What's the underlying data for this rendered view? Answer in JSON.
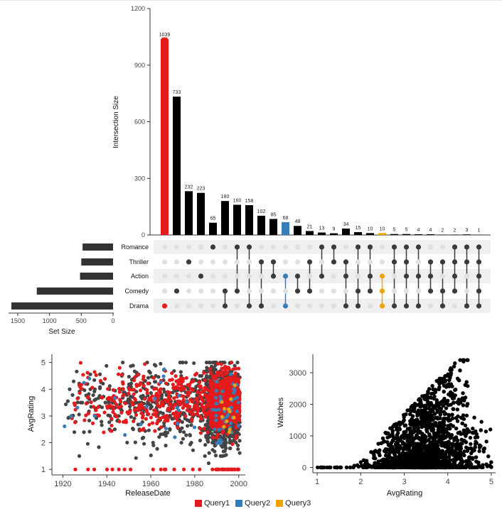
{
  "chart_data": [
    {
      "type": "upset",
      "ylabel": "Intersection Size",
      "ylim": [
        0,
        1200
      ],
      "yticks": [
        0,
        300,
        600,
        900,
        1200
      ],
      "sets": [
        "Romance",
        "Thriller",
        "Action",
        "Comedy",
        "Drama"
      ],
      "set_sizes": [
        480,
        500,
        520,
        1200,
        1600
      ],
      "set_size_label": "Set Size",
      "set_size_ticks": [
        1500,
        1000,
        500,
        0
      ],
      "intersections": [
        {
          "value": 1039,
          "members": [
            "Drama"
          ],
          "color": "#e41a1c",
          "text_color": "#e41a1c",
          "highlight": "Query1"
        },
        {
          "value": 733,
          "members": [
            "Comedy"
          ]
        },
        {
          "value": 232,
          "members": [
            "Thriller"
          ]
        },
        {
          "value": 223,
          "members": [
            "Action"
          ]
        },
        {
          "value": 65,
          "members": [
            "Romance"
          ]
        },
        {
          "value": 180,
          "members": [
            "Comedy",
            "Drama"
          ]
        },
        {
          "value": 160,
          "members": [
            "Romance",
            "Comedy"
          ]
        },
        {
          "value": 158,
          "members": [
            "Romance",
            "Drama"
          ]
        },
        {
          "value": 102,
          "members": [
            "Thriller",
            "Drama"
          ]
        },
        {
          "value": 85,
          "members": [
            "Thriller",
            "Action"
          ]
        },
        {
          "value": 68,
          "members": [
            "Action",
            "Drama"
          ],
          "color": "#377eb8",
          "highlight": "Query2"
        },
        {
          "value": 48,
          "members": [
            "Action",
            "Comedy"
          ]
        },
        {
          "value": 21,
          "members": [
            "Thriller",
            "Comedy"
          ]
        },
        {
          "value": 13,
          "members": [
            "Romance",
            "Action"
          ]
        },
        {
          "value": 9,
          "members": [
            "Romance",
            "Thriller"
          ]
        },
        {
          "value": 34,
          "members": [
            "Thriller",
            "Action",
            "Drama"
          ]
        },
        {
          "value": 15,
          "members": [
            "Romance",
            "Comedy",
            "Drama"
          ]
        },
        {
          "value": 10,
          "members": [
            "Romance",
            "Action",
            "Comedy"
          ]
        },
        {
          "value": 10,
          "members": [
            "Action",
            "Comedy",
            "Drama"
          ],
          "color": "#f0a30a",
          "highlight": "Query3"
        },
        {
          "value": 5,
          "members": [
            "Romance",
            "Thriller",
            "Drama"
          ]
        },
        {
          "value": 5,
          "members": [
            "Romance",
            "Thriller",
            "Action",
            "Drama"
          ]
        },
        {
          "value": 4,
          "members": [
            "Romance",
            "Action",
            "Drama"
          ]
        },
        {
          "value": 4,
          "members": [
            "Thriller",
            "Action",
            "Comedy"
          ]
        },
        {
          "value": 2,
          "members": [
            "Thriller",
            "Comedy",
            "Drama"
          ]
        },
        {
          "value": 2,
          "members": [
            "Romance",
            "Thriller",
            "Action",
            "Comedy"
          ]
        },
        {
          "value": 3,
          "members": [
            "Romance",
            "Thriller",
            "Drama"
          ]
        },
        {
          "value": 1,
          "members": [
            "Romance",
            "Thriller",
            "Action",
            "Comedy",
            "Drama"
          ]
        }
      ]
    },
    {
      "type": "scatter",
      "xlabel": "ReleaseDate",
      "ylabel": "AvgRating",
      "xlim": [
        1915,
        2003
      ],
      "ylim": [
        0.9,
        5.15
      ],
      "xticks": [
        1920,
        1940,
        1960,
        1980,
        2000
      ],
      "yticks": [
        1,
        2,
        3,
        4,
        5
      ],
      "description": "Dense point cloud of movies; red = Query1, blue = Query2, orange = Query3, grey = all others"
    },
    {
      "type": "scatter",
      "xlabel": "AvgRating",
      "ylabel": "Watches",
      "xlim": [
        0.9,
        5.1
      ],
      "ylim": [
        -80,
        3450
      ],
      "xticks": [
        1,
        2,
        3,
        4,
        5
      ],
      "yticks": [
        0,
        1000,
        2000,
        3000
      ]
    }
  ],
  "legend": [
    {
      "label": "Query1",
      "color": "#e41a1c"
    },
    {
      "label": "Query2",
      "color": "#377eb8"
    },
    {
      "label": "Query3",
      "color": "#f0a30a"
    }
  ],
  "colors": {
    "bar": "#000000",
    "dot_active": "#3a3a3a",
    "dot_inactive": "#e0e0e0",
    "stripe": "#efefef",
    "grey_point": "#444444"
  }
}
